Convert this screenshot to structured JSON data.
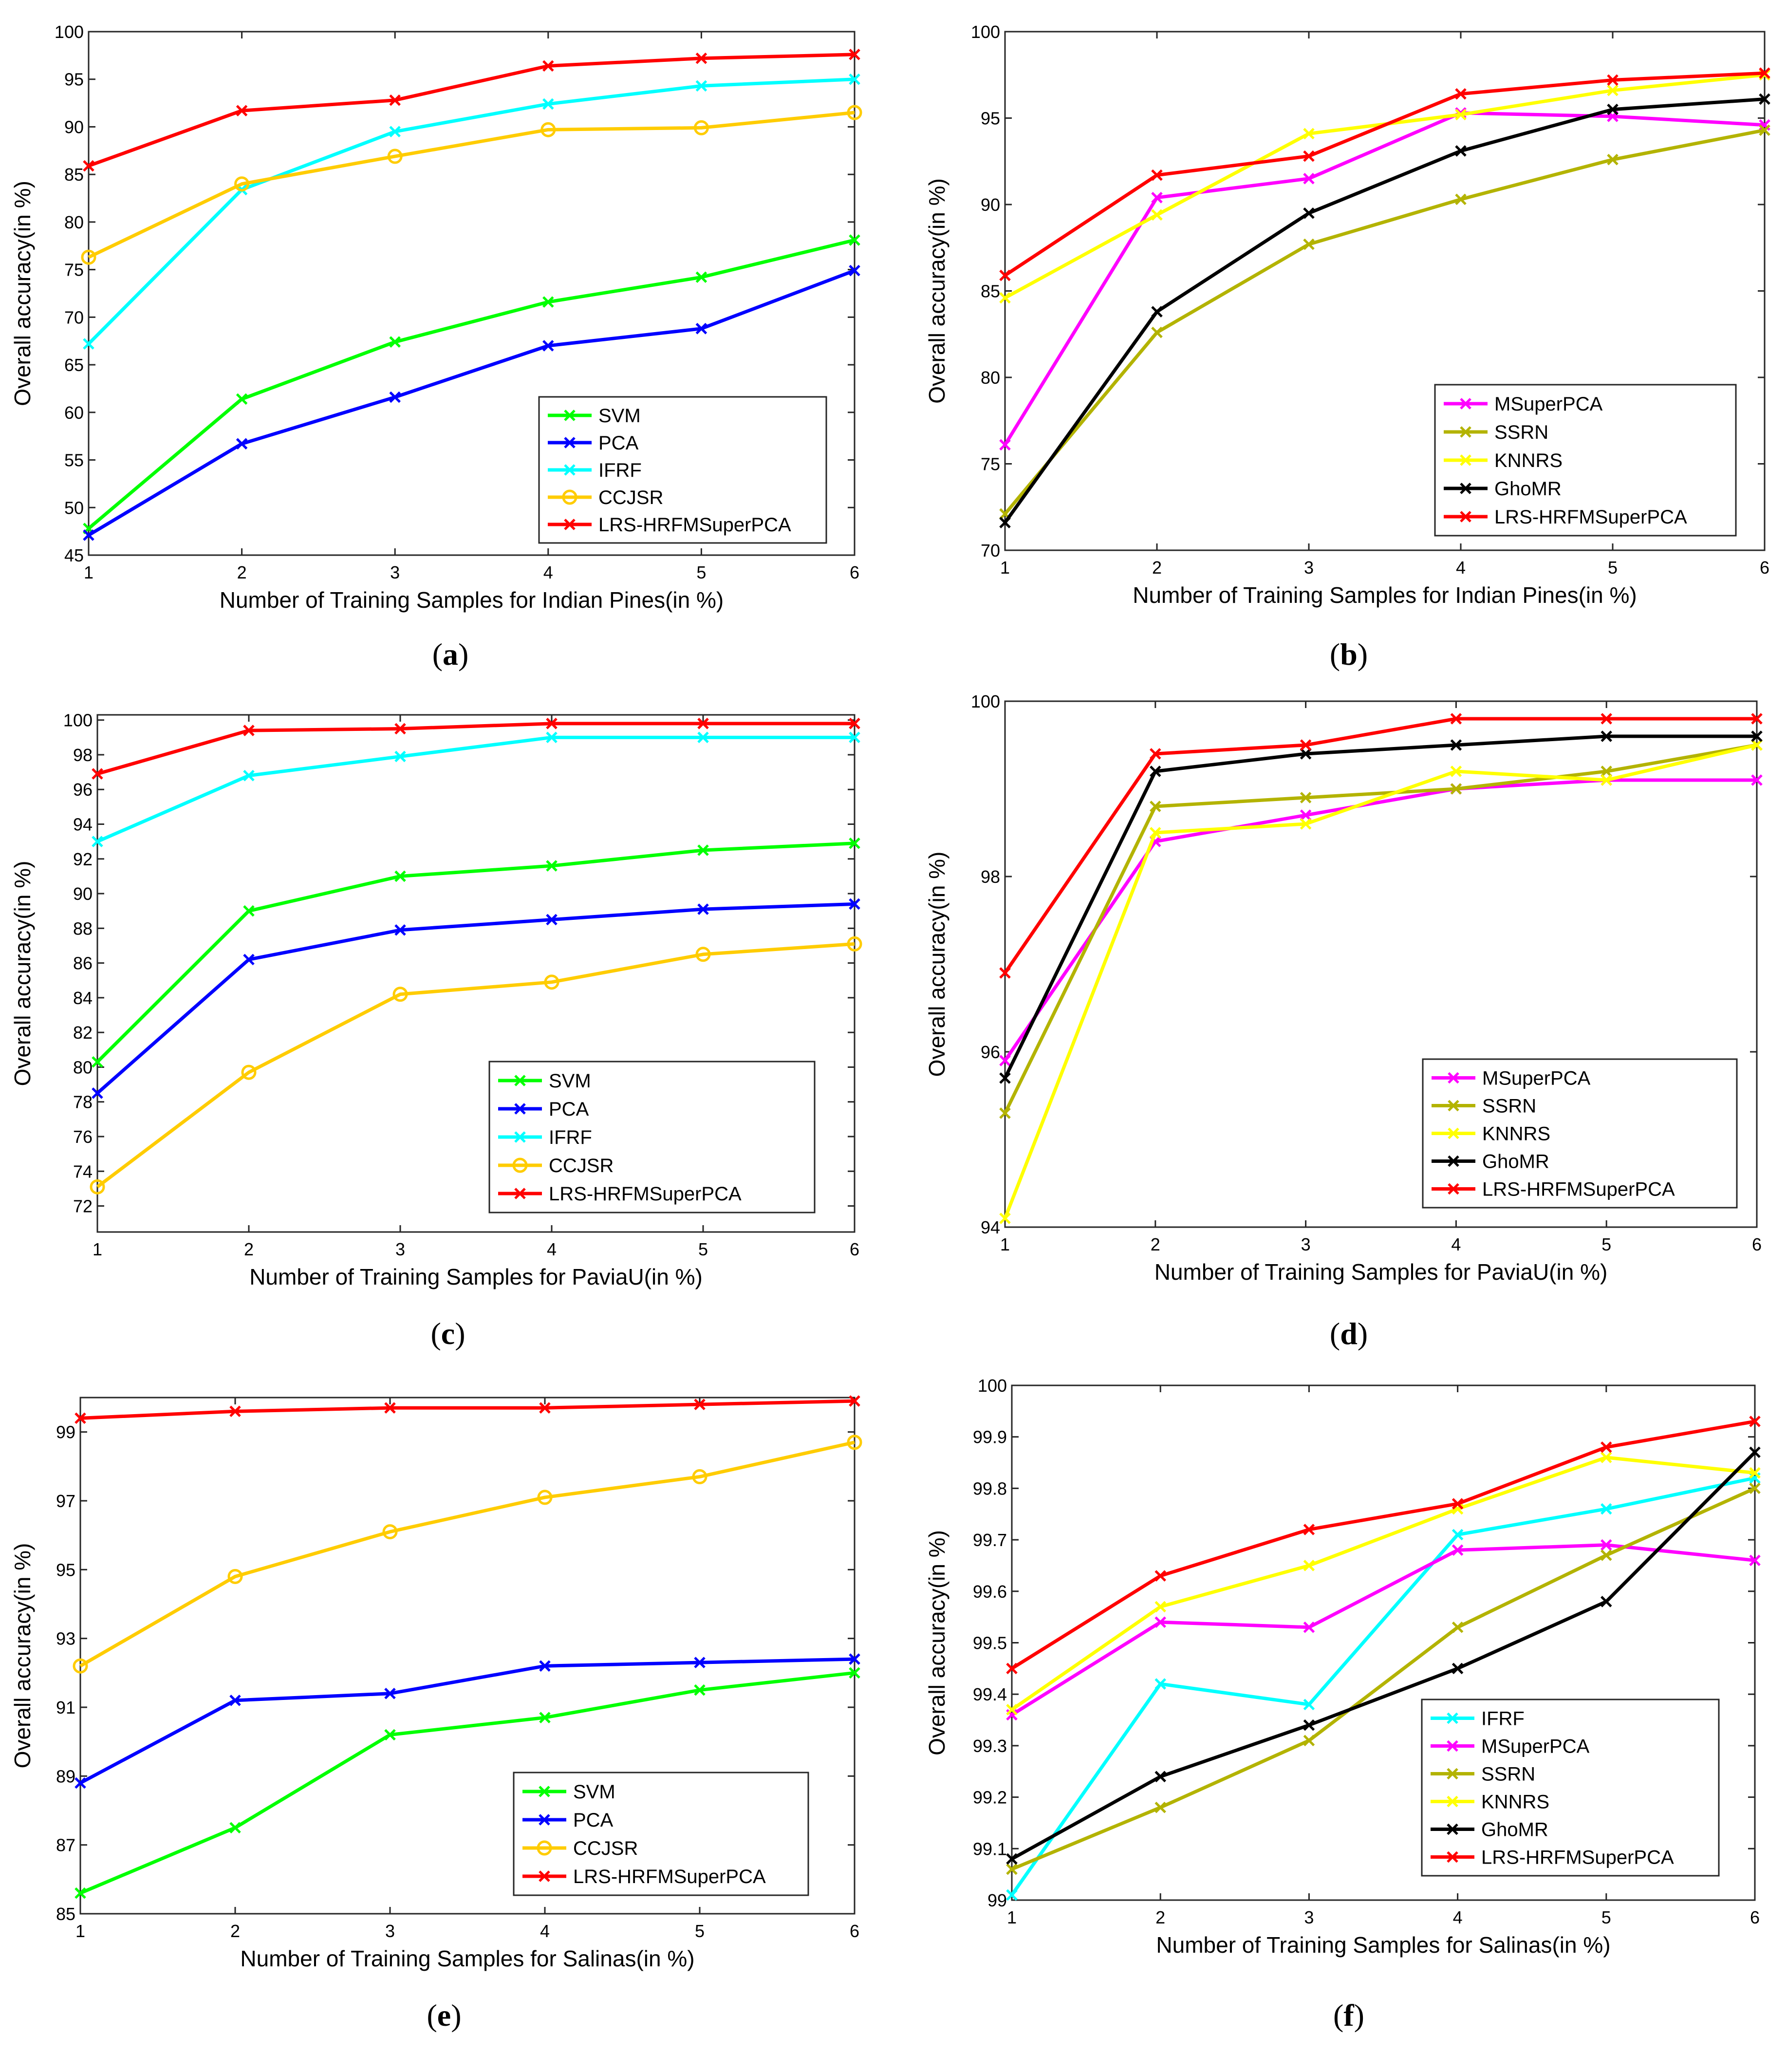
{
  "chart_data": [
    {
      "id": "a",
      "type": "line",
      "panel_label": "a",
      "xlabel": "Number of Training Samples for Indian Pines(in %)",
      "ylabel": "Overall accuracy(in %)",
      "x": [
        1,
        2,
        3,
        4,
        5,
        6
      ],
      "xlim": [
        1,
        6
      ],
      "ylim": [
        45,
        100
      ],
      "yticks": [
        45,
        50,
        55,
        60,
        65,
        70,
        75,
        80,
        85,
        90,
        95,
        100
      ],
      "legend_position": "bottom-right",
      "series": [
        {
          "name": "SVM",
          "color": "#00ff00",
          "marker": "x",
          "values": [
            47.8,
            61.4,
            67.4,
            71.6,
            74.2,
            78.1
          ]
        },
        {
          "name": "PCA",
          "color": "#0000ff",
          "marker": "x",
          "values": [
            47.1,
            56.7,
            61.6,
            67.0,
            68.8,
            74.9
          ]
        },
        {
          "name": "IFRF",
          "color": "#00ffff",
          "marker": "x",
          "values": [
            67.2,
            83.4,
            89.5,
            92.4,
            94.3,
            95.0
          ]
        },
        {
          "name": "CCJSR",
          "color": "#ffcc00",
          "marker": "o",
          "values": [
            76.3,
            84.0,
            86.9,
            89.7,
            89.9,
            91.5
          ]
        },
        {
          "name": "LRS-HRFMSuperPCA",
          "color": "#ff0000",
          "marker": "x",
          "values": [
            85.9,
            91.7,
            92.8,
            96.4,
            97.2,
            97.6
          ]
        }
      ]
    },
    {
      "id": "b",
      "type": "line",
      "panel_label": "b",
      "xlabel": "Number of Training Samples for Indian Pines(in %)",
      "ylabel": "Overall accuracy(in %)",
      "x": [
        1,
        2,
        3,
        4,
        5,
        6
      ],
      "xlim": [
        1,
        6
      ],
      "ylim": [
        70,
        100
      ],
      "yticks": [
        70,
        75,
        80,
        85,
        90,
        95,
        100
      ],
      "legend_position": "bottom-right",
      "series": [
        {
          "name": "MSuperPCA",
          "color": "#ff00ff",
          "marker": "x",
          "values": [
            76.1,
            90.4,
            91.5,
            95.3,
            95.1,
            94.6
          ]
        },
        {
          "name": "SSRN",
          "color": "#b3b300",
          "marker": "x",
          "values": [
            72.1,
            82.6,
            87.7,
            90.3,
            92.6,
            94.3
          ]
        },
        {
          "name": "KNNRS",
          "color": "#ffff00",
          "marker": "x",
          "values": [
            84.6,
            89.4,
            94.1,
            95.2,
            96.6,
            97.5
          ]
        },
        {
          "name": "GhoMR",
          "color": "#000000",
          "marker": "x",
          "values": [
            71.6,
            83.8,
            89.5,
            93.1,
            95.5,
            96.1
          ]
        },
        {
          "name": "LRS-HRFMSuperPCA",
          "color": "#ff0000",
          "marker": "x",
          "values": [
            85.9,
            91.7,
            92.8,
            96.4,
            97.2,
            97.6
          ]
        }
      ]
    },
    {
      "id": "c",
      "type": "line",
      "panel_label": "c",
      "xlabel": "Number of Training Samples for PaviaU(in %)",
      "ylabel": "Overall accuracy(in %)",
      "x": [
        1,
        2,
        3,
        4,
        5,
        6
      ],
      "xlim": [
        1,
        6
      ],
      "ylim": [
        70.5,
        100.3
      ],
      "yticks": [
        72,
        74,
        76,
        78,
        80,
        82,
        84,
        86,
        88,
        90,
        92,
        94,
        96,
        98,
        100
      ],
      "legend_position": "bottom-right",
      "series": [
        {
          "name": "SVM",
          "color": "#00ff00",
          "marker": "x",
          "values": [
            80.3,
            89.0,
            91.0,
            91.6,
            92.5,
            92.9
          ]
        },
        {
          "name": "PCA",
          "color": "#0000ff",
          "marker": "x",
          "values": [
            78.5,
            86.2,
            87.9,
            88.5,
            89.1,
            89.4
          ]
        },
        {
          "name": "IFRF",
          "color": "#00ffff",
          "marker": "x",
          "values": [
            93.0,
            96.8,
            97.9,
            99.0,
            99.0,
            99.0
          ]
        },
        {
          "name": "CCJSR",
          "color": "#ffcc00",
          "marker": "o",
          "values": [
            73.1,
            79.7,
            84.2,
            84.9,
            86.5,
            87.1
          ]
        },
        {
          "name": "LRS-HRFMSuperPCA",
          "color": "#ff0000",
          "marker": "x",
          "values": [
            96.9,
            99.4,
            99.5,
            99.8,
            99.8,
            99.8
          ]
        }
      ]
    },
    {
      "id": "d",
      "type": "line",
      "panel_label": "d",
      "xlabel": "Number of Training Samples for PaviaU(in %)",
      "ylabel": "Overall accuracy(in %)",
      "x": [
        1,
        2,
        3,
        4,
        5,
        6
      ],
      "xlim": [
        1,
        6
      ],
      "ylim": [
        94,
        100
      ],
      "yticks": [
        94,
        96,
        98,
        100
      ],
      "legend_position": "bottom-right",
      "series": [
        {
          "name": "MSuperPCA",
          "color": "#ff00ff",
          "marker": "x",
          "values": [
            95.9,
            98.4,
            98.7,
            99.0,
            99.1,
            99.1
          ]
        },
        {
          "name": "SSRN",
          "color": "#b3b300",
          "marker": "x",
          "values": [
            95.3,
            98.8,
            98.9,
            99.0,
            99.2,
            99.5
          ]
        },
        {
          "name": "KNNRS",
          "color": "#ffff00",
          "marker": "x",
          "values": [
            94.1,
            98.5,
            98.6,
            99.2,
            99.1,
            99.5
          ]
        },
        {
          "name": "GhoMR",
          "color": "#000000",
          "marker": "x",
          "values": [
            95.7,
            99.2,
            99.4,
            99.5,
            99.6,
            99.6
          ]
        },
        {
          "name": "LRS-HRFMSuperPCA",
          "color": "#ff0000",
          "marker": "x",
          "values": [
            96.9,
            99.4,
            99.5,
            99.8,
            99.8,
            99.8
          ]
        }
      ]
    },
    {
      "id": "e",
      "type": "line",
      "panel_label": "e",
      "xlabel": "Number of Training Samples for Salinas(in %)",
      "ylabel": "Overall accuracy(in %)",
      "x": [
        1,
        2,
        3,
        4,
        5,
        6
      ],
      "xlim": [
        1,
        6
      ],
      "ylim": [
        85,
        100
      ],
      "yticks": [
        85,
        87,
        89,
        91,
        93,
        95,
        97,
        99
      ],
      "legend_position": "bottom-right",
      "series": [
        {
          "name": "SVM",
          "color": "#00ff00",
          "marker": "x",
          "values": [
            85.6,
            87.5,
            90.2,
            90.7,
            91.5,
            92.0
          ]
        },
        {
          "name": "PCA",
          "color": "#0000ff",
          "marker": "x",
          "values": [
            88.8,
            91.2,
            91.4,
            92.2,
            92.3,
            92.4
          ]
        },
        {
          "name": "CCJSR",
          "color": "#ffcc00",
          "marker": "o",
          "values": [
            92.2,
            94.8,
            96.1,
            97.1,
            97.7,
            98.7
          ]
        },
        {
          "name": "LRS-HRFMSuperPCA",
          "color": "#ff0000",
          "marker": "x",
          "values": [
            99.4,
            99.6,
            99.7,
            99.7,
            99.8,
            99.9
          ]
        }
      ]
    },
    {
      "id": "f",
      "type": "line",
      "panel_label": "f",
      "xlabel": "Number of Training Samples for Salinas(in %)",
      "ylabel": "Overall accuracy(in %)",
      "x": [
        1,
        2,
        3,
        4,
        5,
        6
      ],
      "xlim": [
        1,
        6
      ],
      "ylim": [
        99,
        100
      ],
      "yticks": [
        99,
        99.1,
        99.2,
        99.3,
        99.4,
        99.5,
        99.6,
        99.7,
        99.8,
        99.9,
        100
      ],
      "legend_position": "bottom-right",
      "series": [
        {
          "name": "IFRF",
          "color": "#00ffff",
          "marker": "x",
          "values": [
            99.01,
            99.42,
            99.38,
            99.71,
            99.76,
            99.82
          ]
        },
        {
          "name": "MSuperPCA",
          "color": "#ff00ff",
          "marker": "x",
          "values": [
            99.36,
            99.54,
            99.53,
            99.68,
            99.69,
            99.66
          ]
        },
        {
          "name": "SSRN",
          "color": "#b3b300",
          "marker": "x",
          "values": [
            99.06,
            99.18,
            99.31,
            99.53,
            99.67,
            99.8
          ]
        },
        {
          "name": "KNNRS",
          "color": "#ffff00",
          "marker": "x",
          "values": [
            99.37,
            99.57,
            99.65,
            99.76,
            99.86,
            99.83
          ]
        },
        {
          "name": "GhoMR",
          "color": "#000000",
          "marker": "x",
          "values": [
            99.08,
            99.24,
            99.34,
            99.45,
            99.58,
            99.87
          ]
        },
        {
          "name": "LRS-HRFMSuperPCA",
          "color": "#ff0000",
          "marker": "x",
          "values": [
            99.45,
            99.63,
            99.72,
            99.77,
            99.88,
            99.93
          ]
        }
      ]
    }
  ]
}
